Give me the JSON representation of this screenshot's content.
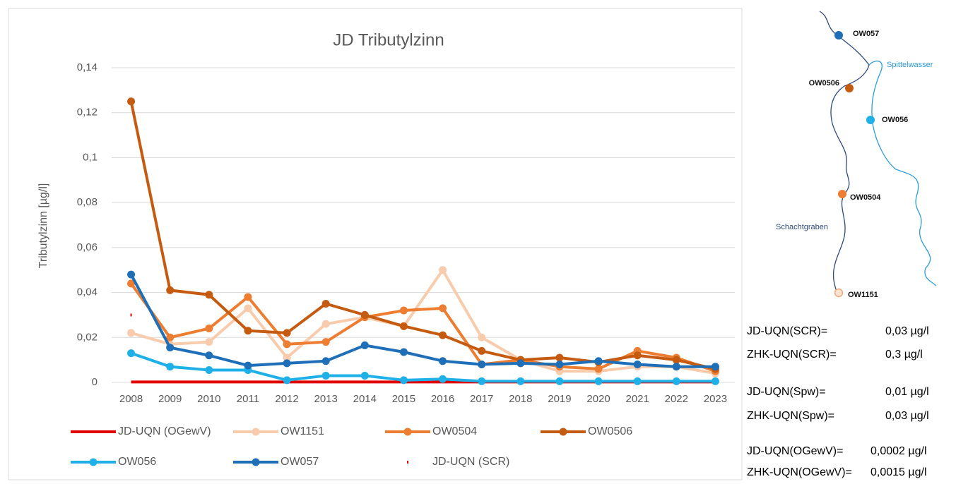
{
  "chart_data": {
    "type": "line",
    "title": "JD Tributylzinn",
    "y_label": "Tributylzinn  [µg/l]",
    "categories": [
      "2008",
      "2009",
      "2010",
      "2011",
      "2012",
      "2013",
      "2014",
      "2015",
      "2016",
      "2017",
      "2018",
      "2019",
      "2020",
      "2021",
      "2022",
      "2023"
    ],
    "ylim": [
      0,
      0.14
    ],
    "yticks": [
      0,
      {
        "value": 0.02,
        "label": "0,02"
      },
      {
        "value": 0.04,
        "label": "0,04"
      },
      {
        "value": 0.06,
        "label": "0,06"
      },
      {
        "value": 0.08,
        "label": "0,08"
      },
      {
        "value": 0.1,
        "label": "0,1"
      },
      {
        "value": 0.12,
        "label": "0,12"
      },
      {
        "value": 0.14,
        "label": "0,14"
      }
    ],
    "grid": true,
    "legend": "bottom",
    "series": [
      {
        "name": "JD-UQN (OGewV)",
        "color": "#e00000",
        "markers": false,
        "values": [
          0.0002,
          0.0002,
          0.0002,
          0.0002,
          0.0002,
          0.0002,
          0.0002,
          0.0002,
          0.0002,
          0.0002,
          0.0002,
          0.0002,
          0.0002,
          0.0002,
          0.0002,
          0.0002
        ]
      },
      {
        "name": "OW1151",
        "color": "#f8cbad",
        "markers": true,
        "values": [
          0.022,
          0.017,
          0.018,
          0.033,
          0.011,
          0.026,
          0.029,
          0.025,
          0.05,
          0.02,
          0.01,
          0.005,
          0.005,
          0.007,
          0.007,
          0.004
        ]
      },
      {
        "name": "OW0504",
        "color": "#ed7d31",
        "markers": true,
        "values": [
          0.044,
          0.02,
          0.024,
          0.038,
          0.017,
          0.018,
          0.029,
          0.032,
          0.033,
          0.008,
          0.01,
          0.007,
          0.006,
          0.014,
          0.011,
          0.005
        ]
      },
      {
        "name": "OW0506",
        "color": "#c55a11",
        "markers": true,
        "values": [
          0.125,
          0.041,
          0.039,
          0.023,
          0.022,
          0.035,
          0.03,
          0.025,
          0.021,
          0.014,
          0.01,
          0.011,
          0.009,
          0.012,
          0.01,
          0.006
        ]
      },
      {
        "name": "OW056",
        "color": "#1fb0e8",
        "markers": true,
        "values": [
          0.013,
          0.007,
          0.0055,
          0.0055,
          0.001,
          0.003,
          0.003,
          0.001,
          0.0015,
          0.0005,
          0.0005,
          0.0005,
          0.0005,
          0.0005,
          0.0005,
          0.0005
        ]
      },
      {
        "name": "OW057",
        "color": "#1f6fb8",
        "markers": true,
        "values": [
          0.048,
          0.0155,
          0.012,
          0.0075,
          0.0085,
          0.0095,
          0.0165,
          0.0135,
          0.0095,
          0.008,
          0.0085,
          0.008,
          0.0095,
          0.008,
          0.007,
          0.007
        ]
      },
      {
        "name": "JD-UQN (SCR)",
        "color": "#e00000",
        "markers": true,
        "line": false,
        "values": [
          0.03,
          null,
          null,
          null,
          null,
          null,
          null,
          null,
          null,
          null,
          null,
          null,
          null,
          null,
          null,
          null
        ]
      }
    ]
  },
  "map": {
    "stations": [
      "OW057",
      "OW0506",
      "OW056",
      "OW0504",
      "OW1151"
    ],
    "rivers": [
      "Spittelwasser",
      "Schachtgraben"
    ]
  },
  "notes": [
    {
      "label": "JD-UQN(SCR)=",
      "value": "0,03 µg/l"
    },
    {
      "label": "ZHK-UQN(SCR)=",
      "value": "0,3   µg/l"
    },
    {
      "label": "JD-UQN(Spw)=",
      "value": "0,01 µg/l"
    },
    {
      "label": "ZHK-UQN(Spw)=",
      "value": "0,03 µg/l"
    },
    {
      "label": "JD-UQN(OGewV)=",
      "value": "0,0002 µg/l"
    },
    {
      "label": "ZHK-UQN(OGewV)=",
      "value": "0,0015 µg/l"
    }
  ]
}
